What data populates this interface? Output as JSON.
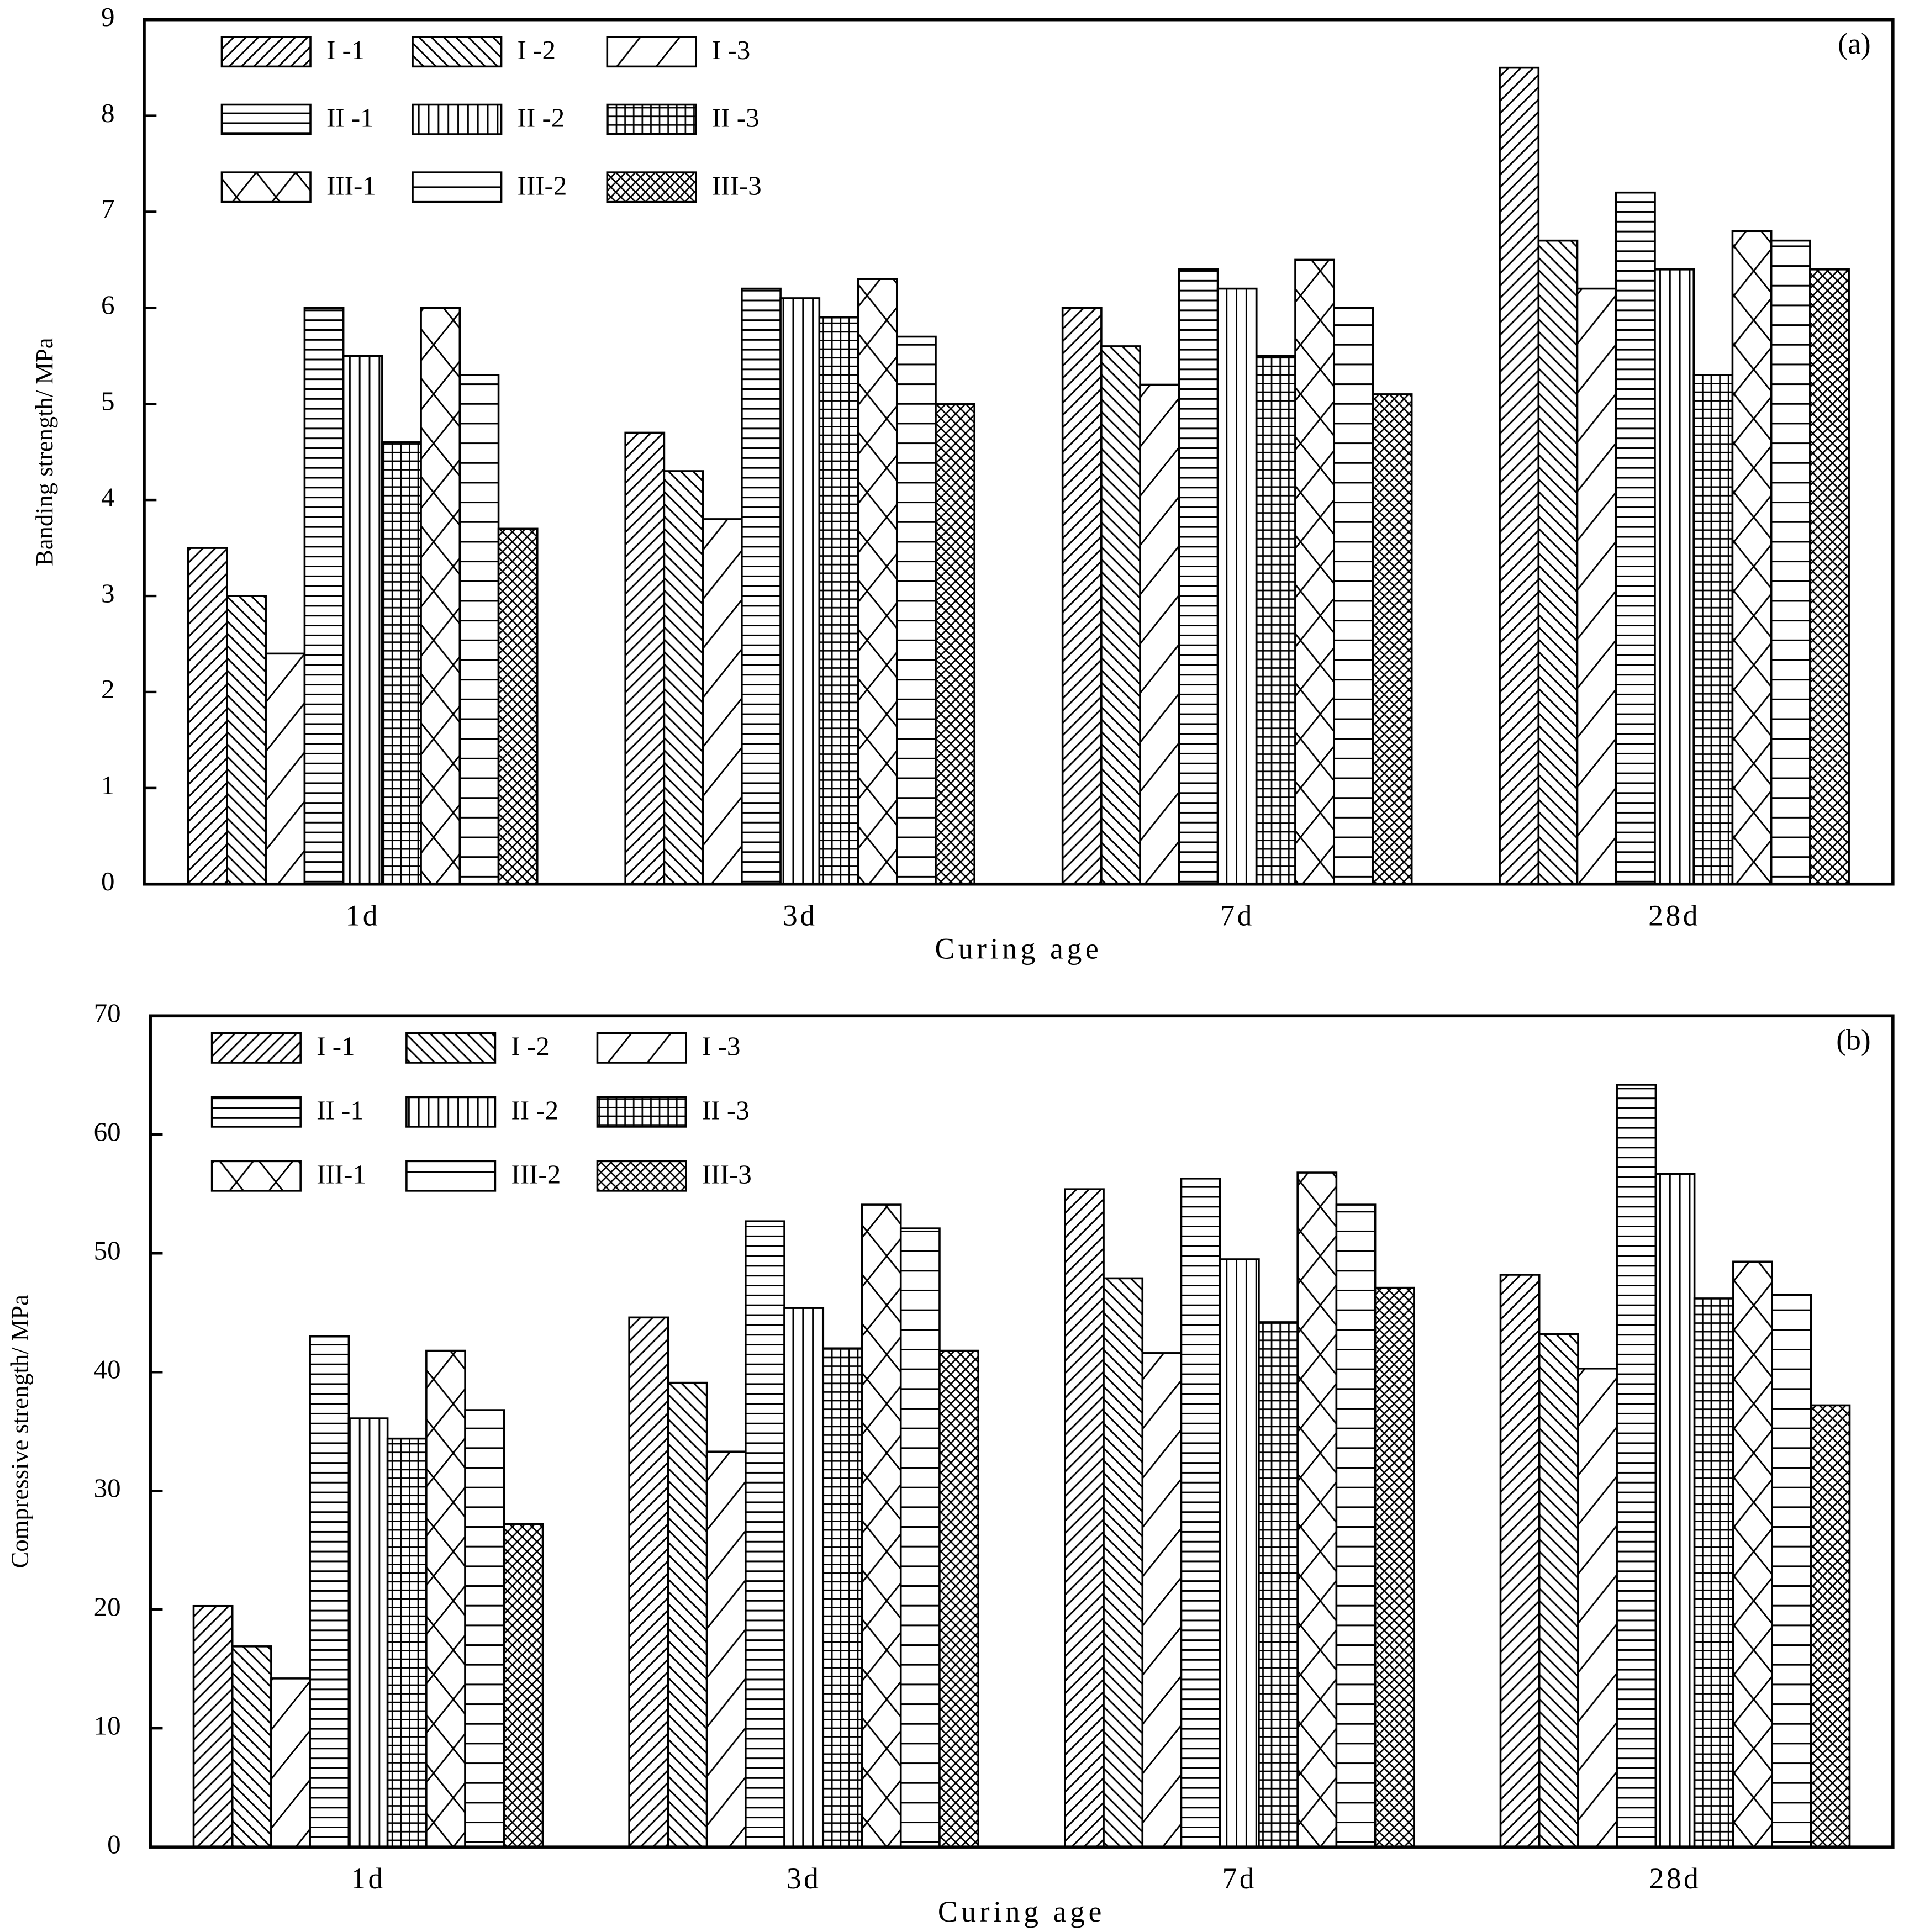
{
  "chart_data": [
    {
      "type": "bar",
      "label": "(a)",
      "ylabel": "Banding strength/ MPa",
      "xlabel": "Curing age",
      "categories": [
        "1d",
        "3d",
        "7d",
        "28d"
      ],
      "ylim": [
        0,
        9
      ],
      "yticks": [
        0,
        1,
        2,
        3,
        4,
        5,
        6,
        7,
        8,
        9
      ],
      "legend": "upper left",
      "series": [
        {
          "name": "I -1",
          "color": "#000000",
          "hatch": "diag-right",
          "values": [
            3.5,
            4.7,
            6.0,
            8.5
          ]
        },
        {
          "name": "I -2",
          "color": "#000000",
          "hatch": "diag-left",
          "values": [
            3.0,
            4.3,
            5.6,
            6.7
          ]
        },
        {
          "name": "I -3",
          "color": "#000000",
          "hatch": "diag-right-sparse",
          "values": [
            2.4,
            3.8,
            5.2,
            6.2
          ]
        },
        {
          "name": "II -1",
          "color": "#000000",
          "hatch": "horizontal",
          "values": [
            6.0,
            6.2,
            6.4,
            7.2
          ]
        },
        {
          "name": "II -2",
          "color": "#000000",
          "hatch": "vertical",
          "values": [
            5.5,
            6.1,
            6.2,
            6.4
          ]
        },
        {
          "name": "II -3",
          "color": "#000000",
          "hatch": "grid",
          "values": [
            4.6,
            5.9,
            5.5,
            5.3
          ]
        },
        {
          "name": "III-1",
          "color": "#000000",
          "hatch": "big-cross",
          "values": [
            6.0,
            6.3,
            6.5,
            6.8
          ]
        },
        {
          "name": "III-2",
          "color": "#000000",
          "hatch": "horizontal-sparse",
          "values": [
            5.3,
            5.7,
            6.0,
            6.7
          ]
        },
        {
          "name": "III-3",
          "color": "#000000",
          "hatch": "crosshatch",
          "values": [
            3.7,
            5.0,
            5.1,
            6.4
          ]
        }
      ]
    },
    {
      "type": "bar",
      "label": "(b)",
      "ylabel": "Compressive strength/ MPa",
      "xlabel": "Curing age",
      "categories": [
        "1d",
        "3d",
        "7d",
        "28d"
      ],
      "ylim": [
        0,
        70
      ],
      "yticks": [
        0,
        10,
        20,
        30,
        40,
        50,
        60,
        70
      ],
      "legend": "upper left",
      "series": [
        {
          "name": "I -1",
          "color": "#000000",
          "hatch": "diag-right",
          "values": [
            20.3,
            44.6,
            55.4,
            48.2
          ]
        },
        {
          "name": "I -2",
          "color": "#000000",
          "hatch": "diag-left",
          "values": [
            16.9,
            39.1,
            47.9,
            43.2
          ]
        },
        {
          "name": "I -3",
          "color": "#000000",
          "hatch": "diag-right-sparse",
          "values": [
            14.2,
            33.3,
            41.6,
            40.3
          ]
        },
        {
          "name": "II -1",
          "color": "#000000",
          "hatch": "horizontal",
          "values": [
            43.0,
            52.7,
            56.3,
            64.2
          ]
        },
        {
          "name": "II -2",
          "color": "#000000",
          "hatch": "vertical",
          "values": [
            36.1,
            45.4,
            49.5,
            56.7
          ]
        },
        {
          "name": "II -3",
          "color": "#000000",
          "hatch": "grid",
          "values": [
            34.4,
            42.0,
            44.2,
            46.2
          ]
        },
        {
          "name": "III-1",
          "color": "#000000",
          "hatch": "big-cross",
          "values": [
            41.8,
            54.1,
            56.8,
            49.3
          ]
        },
        {
          "name": "III-2",
          "color": "#000000",
          "hatch": "horizontal-sparse",
          "values": [
            36.8,
            52.1,
            54.1,
            46.5
          ]
        },
        {
          "name": "III-3",
          "color": "#000000",
          "hatch": "crosshatch",
          "values": [
            27.2,
            41.8,
            47.1,
            37.2
          ]
        }
      ]
    }
  ]
}
